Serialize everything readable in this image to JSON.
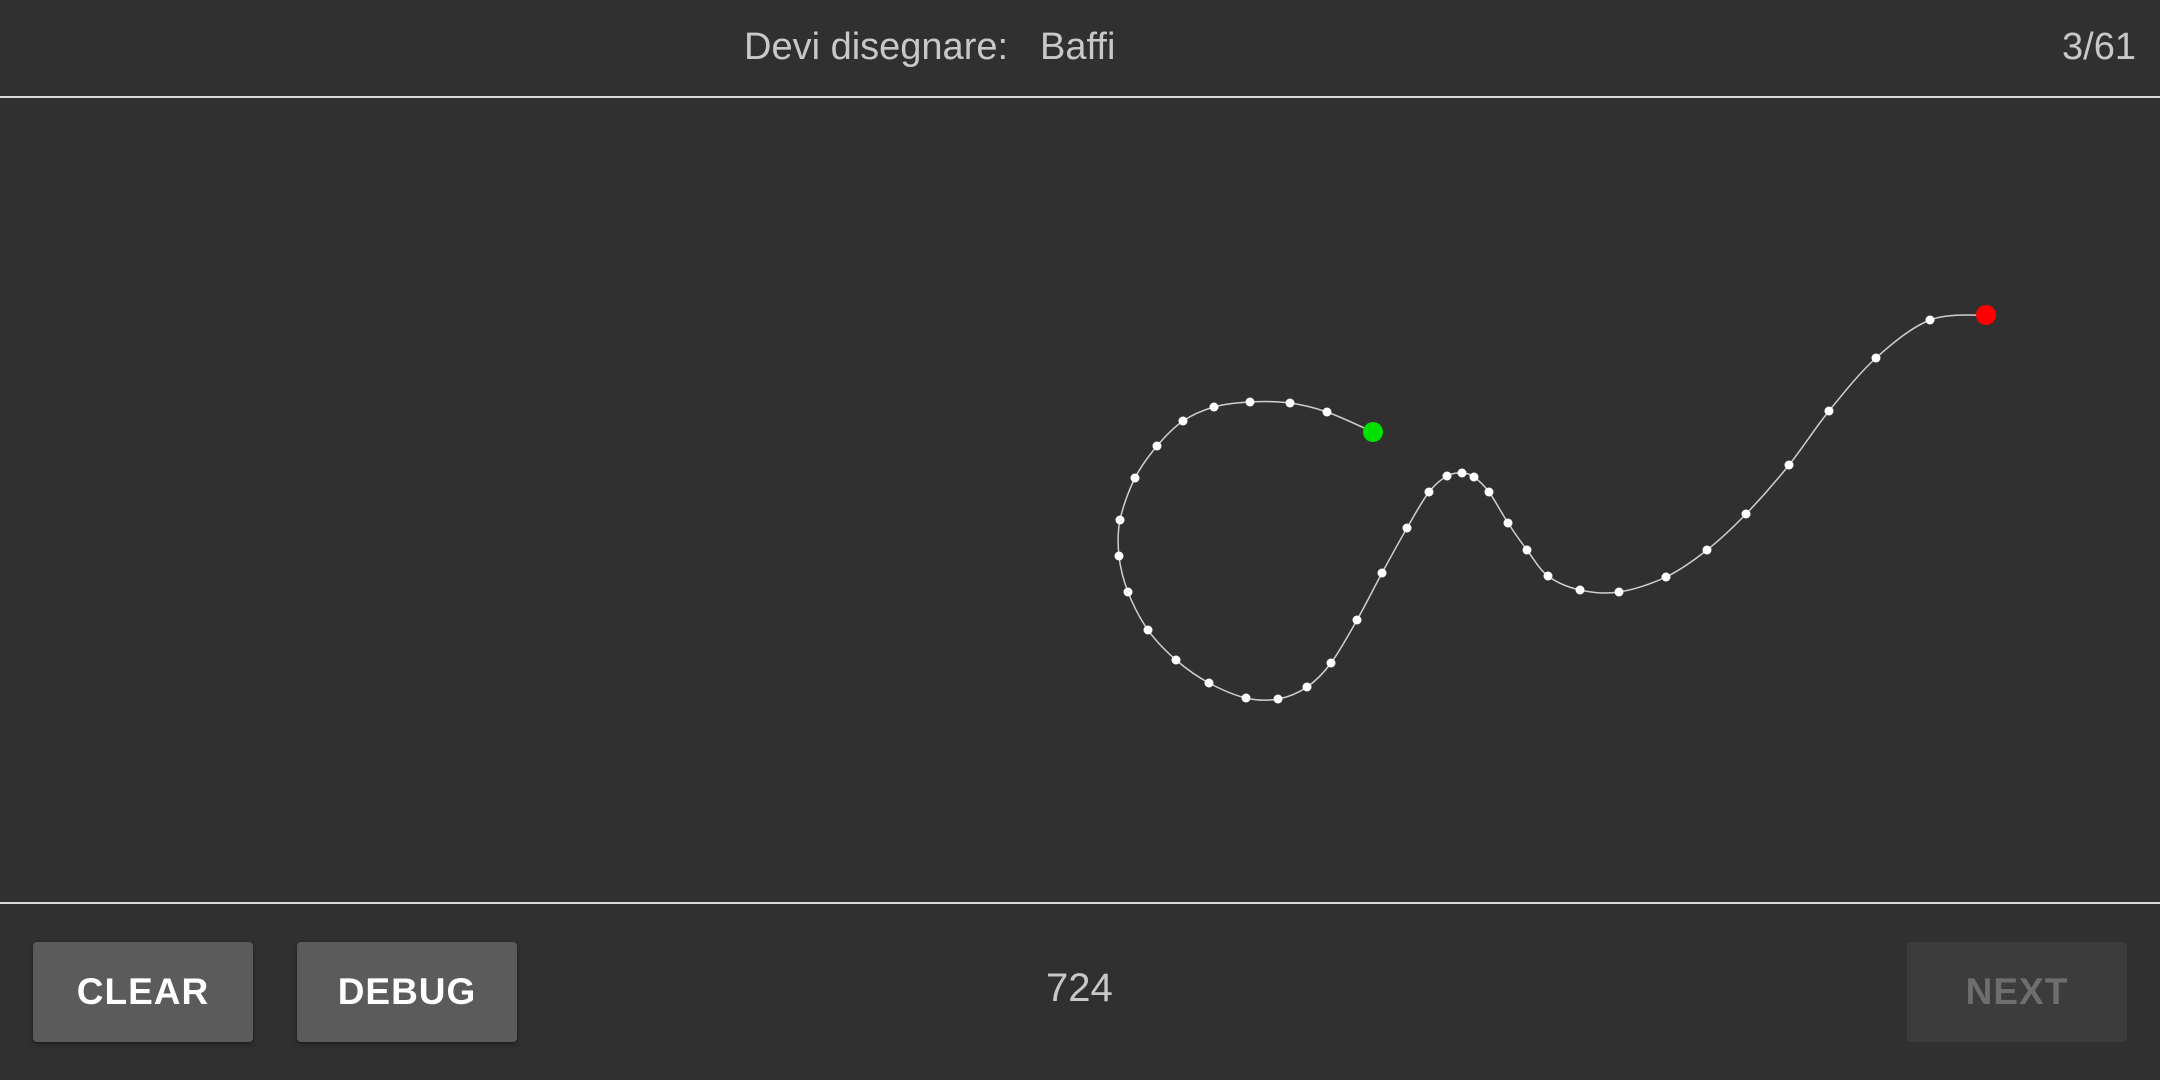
{
  "header": {
    "prompt_label": "Devi disegnare:",
    "prompt_word": "Baffi",
    "progress": "3/61"
  },
  "footer": {
    "clear_label": "CLEAR",
    "debug_label": "DEBUG",
    "point_count": "724",
    "next_label": "NEXT"
  },
  "stroke": {
    "line_color": "#cfcfcf",
    "point_color": "#ffffff",
    "start_color": "#00e000",
    "end_color": "#ff0000"
  }
}
